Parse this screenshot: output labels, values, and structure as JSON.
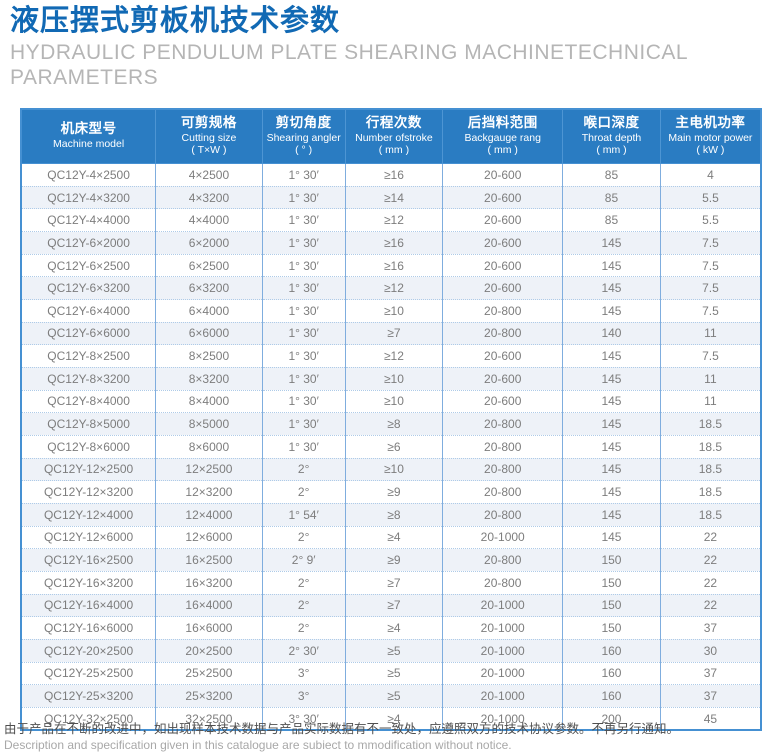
{
  "page": {
    "title_zh": "液压摆式剪板机技术参数",
    "title_en": "HYDRAULIC PENDULUM PLATE SHEARING MACHINETECHNICAL PARAMETERS"
  },
  "colors": {
    "title_blue": "#1169b4",
    "header_bg": "#2a7cc2",
    "table_border": "#4590d2",
    "cell_divider": "#7fadde",
    "row_alt_bg": "#eef2f8",
    "cell_text": "#7d7d7d"
  },
  "table": {
    "columns": [
      {
        "zh": "机床型号",
        "en": "Machine model",
        "unit": ""
      },
      {
        "zh": "可剪规格",
        "en": "Cutting size",
        "unit": "( T×W )"
      },
      {
        "zh": "剪切角度",
        "en": "Shearing angler",
        "unit": "( ° )"
      },
      {
        "zh": "行程次数",
        "en": "Number ofstroke",
        "unit": "( mm )"
      },
      {
        "zh": "后挡料范围",
        "en": "Backgauge rang",
        "unit": "( mm )"
      },
      {
        "zh": "喉口深度",
        "en": "Throat depth",
        "unit": "( mm )"
      },
      {
        "zh": "主电机功率",
        "en": "Main motor power",
        "unit": "( kW )"
      }
    ],
    "rows": [
      [
        "QC12Y-4×2500",
        "4×2500",
        "1° 30′",
        "≥16",
        "20-600",
        "85",
        "4"
      ],
      [
        "QC12Y-4×3200",
        "4×3200",
        "1° 30′",
        "≥14",
        "20-600",
        "85",
        "5.5"
      ],
      [
        "QC12Y-4×4000",
        "4×4000",
        "1° 30′",
        "≥12",
        "20-600",
        "85",
        "5.5"
      ],
      [
        "QC12Y-6×2000",
        "6×2000",
        "1° 30′",
        "≥16",
        "20-600",
        "145",
        "7.5"
      ],
      [
        "QC12Y-6×2500",
        "6×2500",
        "1° 30′",
        "≥16",
        "20-600",
        "145",
        "7.5"
      ],
      [
        "QC12Y-6×3200",
        "6×3200",
        "1° 30′",
        "≥12",
        "20-600",
        "145",
        "7.5"
      ],
      [
        "QC12Y-6×4000",
        "6×4000",
        "1° 30′",
        "≥10",
        "20-800",
        "145",
        "7.5"
      ],
      [
        "QC12Y-6×6000",
        "6×6000",
        "1° 30′",
        "≥7",
        "20-800",
        "140",
        "11"
      ],
      [
        "QC12Y-8×2500",
        "8×2500",
        "1° 30′",
        "≥12",
        "20-600",
        "145",
        "7.5"
      ],
      [
        "QC12Y-8×3200",
        "8×3200",
        "1° 30′",
        "≥10",
        "20-600",
        "145",
        "11"
      ],
      [
        "QC12Y-8×4000",
        "8×4000",
        "1° 30′",
        "≥10",
        "20-600",
        "145",
        "11"
      ],
      [
        "QC12Y-8×5000",
        "8×5000",
        "1° 30′",
        "≥8",
        "20-800",
        "145",
        "18.5"
      ],
      [
        "QC12Y-8×6000",
        "8×6000",
        "1° 30′",
        "≥6",
        "20-800",
        "145",
        "18.5"
      ],
      [
        "QC12Y-12×2500",
        "12×2500",
        "2°",
        "≥10",
        "20-800",
        "145",
        "18.5"
      ],
      [
        "QC12Y-12×3200",
        "12×3200",
        "2°",
        "≥9",
        "20-800",
        "145",
        "18.5"
      ],
      [
        "QC12Y-12×4000",
        "12×4000",
        "1° 54′",
        "≥8",
        "20-800",
        "145",
        "18.5"
      ],
      [
        "QC12Y-12×6000",
        "12×6000",
        "2°",
        "≥4",
        "20-1000",
        "145",
        "22"
      ],
      [
        "QC12Y-16×2500",
        "16×2500",
        "2° 9′",
        "≥9",
        "20-800",
        "150",
        "22"
      ],
      [
        "QC12Y-16×3200",
        "16×3200",
        "2°",
        "≥7",
        "20-800",
        "150",
        "22"
      ],
      [
        "QC12Y-16×4000",
        "16×4000",
        "2°",
        "≥7",
        "20-1000",
        "150",
        "22"
      ],
      [
        "QC12Y-16×6000",
        "16×6000",
        "2°",
        "≥4",
        "20-1000",
        "150",
        "37"
      ],
      [
        "QC12Y-20×2500",
        "20×2500",
        "2° 30′",
        "≥5",
        "20-1000",
        "160",
        "30"
      ],
      [
        "QC12Y-25×2500",
        "25×2500",
        "3°",
        "≥5",
        "20-1000",
        "160",
        "37"
      ],
      [
        "QC12Y-25×3200",
        "25×3200",
        "3°",
        "≥5",
        "20-1000",
        "160",
        "37"
      ],
      [
        "QC12Y-32×2500",
        "32×2500",
        "3° 30′",
        "≥4",
        "20-1000",
        "200",
        "45"
      ]
    ]
  },
  "footer": {
    "zh": "由于产品在不断的改进中，如出现样本技术数据与产品实际数据有不一致处，应遵照双方的技术协议参数。不再另行通知。",
    "en": "Description and specification given in this catalogue are subiect to mmodification without notice."
  }
}
